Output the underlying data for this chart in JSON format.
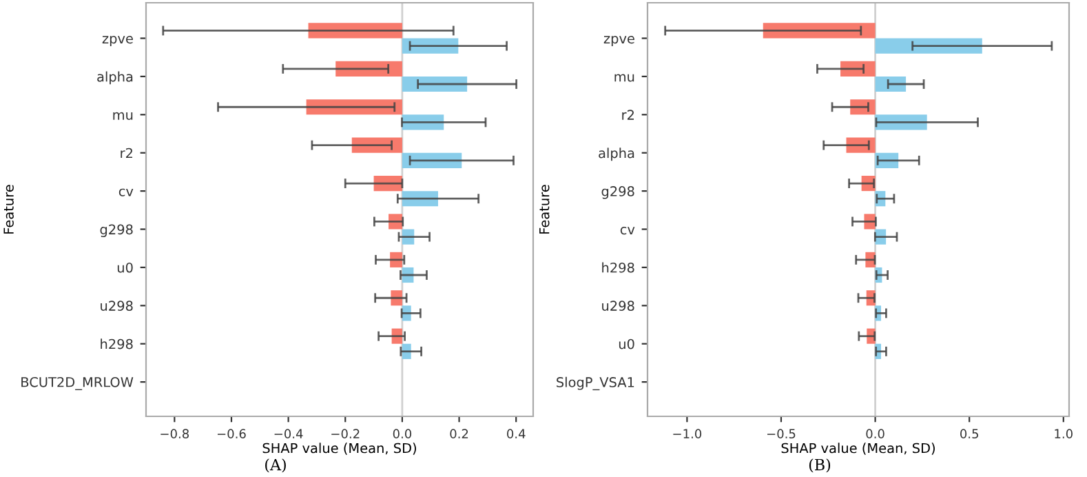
{
  "chart_data": [
    {
      "type": "bar",
      "orientation": "horizontal",
      "xlabel": "SHAP value (Mean, SD)",
      "ylabel": "Feature",
      "categories": [
        "zpve",
        "alpha",
        "mu",
        "r2",
        "cv",
        "g298",
        "u0",
        "u298",
        "h298",
        "BCUT2D_MRLOW"
      ],
      "series": [
        {
          "color": "#f77a6c",
          "values": [
            -0.33,
            -0.234,
            -0.337,
            -0.177,
            -0.1,
            -0.048,
            -0.043,
            -0.04,
            -0.037,
            0
          ],
          "errors": [
            0.51,
            0.185,
            0.31,
            0.14,
            0.1,
            0.05,
            0.05,
            0.055,
            0.046,
            null
          ]
        },
        {
          "color": "#89cdea",
          "values": [
            0.197,
            0.228,
            0.146,
            0.209,
            0.126,
            0.042,
            0.04,
            0.031,
            0.031,
            0
          ],
          "errors": [
            0.17,
            0.173,
            0.147,
            0.182,
            0.142,
            0.054,
            0.046,
            0.033,
            0.036,
            null
          ]
        }
      ],
      "xlim": [
        -0.9,
        0.46
      ],
      "xticks": [
        {
          "value": -0.8,
          "label": "−0.8"
        },
        {
          "value": -0.6,
          "label": "−0.6"
        },
        {
          "value": -0.4,
          "label": "−0.4"
        },
        {
          "value": -0.2,
          "label": "−0.2"
        },
        {
          "value": 0.0,
          "label": "0.0"
        },
        {
          "value": 0.2,
          "label": "0.2"
        },
        {
          "value": 0.4,
          "label": "0.4"
        }
      ],
      "ref_lines": [
        {
          "axis": "x",
          "value": 0,
          "color": "#d0d0d0"
        }
      ],
      "annotations": [
        "(A)"
      ]
    },
    {
      "type": "bar",
      "orientation": "horizontal",
      "xlabel": "SHAP value (Mean, SD)",
      "ylabel": "Feature",
      "categories": [
        "zpve",
        "mu",
        "r2",
        "alpha",
        "g298",
        "cv",
        "h298",
        "u298",
        "u0",
        "SlogP_VSA1"
      ],
      "series": [
        {
          "color": "#f77a6c",
          "values": [
            -0.596,
            -0.185,
            -0.133,
            -0.154,
            -0.073,
            -0.059,
            -0.052,
            -0.047,
            -0.045,
            0
          ],
          "errors": [
            0.52,
            0.123,
            0.096,
            0.12,
            0.066,
            0.062,
            0.05,
            0.043,
            0.042,
            null
          ]
        },
        {
          "color": "#89cdea",
          "values": [
            0.568,
            0.163,
            0.275,
            0.123,
            0.054,
            0.057,
            0.036,
            0.031,
            0.031,
            0
          ],
          "errors": [
            0.37,
            0.095,
            0.27,
            0.11,
            0.046,
            0.058,
            0.03,
            0.027,
            0.027,
            null
          ]
        }
      ],
      "xlim": [
        -1.21,
        1.03
      ],
      "xticks": [
        {
          "value": -1.0,
          "label": "−1.0"
        },
        {
          "value": -0.5,
          "label": "−0.5"
        },
        {
          "value": 0.0,
          "label": "0.0"
        },
        {
          "value": 0.5,
          "label": "0.5"
        },
        {
          "value": 1.0,
          "label": "1.0"
        }
      ],
      "ref_lines": [
        {
          "axis": "x",
          "value": 0,
          "color": "#d0d0d0"
        }
      ],
      "annotations": [
        "(B)"
      ]
    }
  ]
}
